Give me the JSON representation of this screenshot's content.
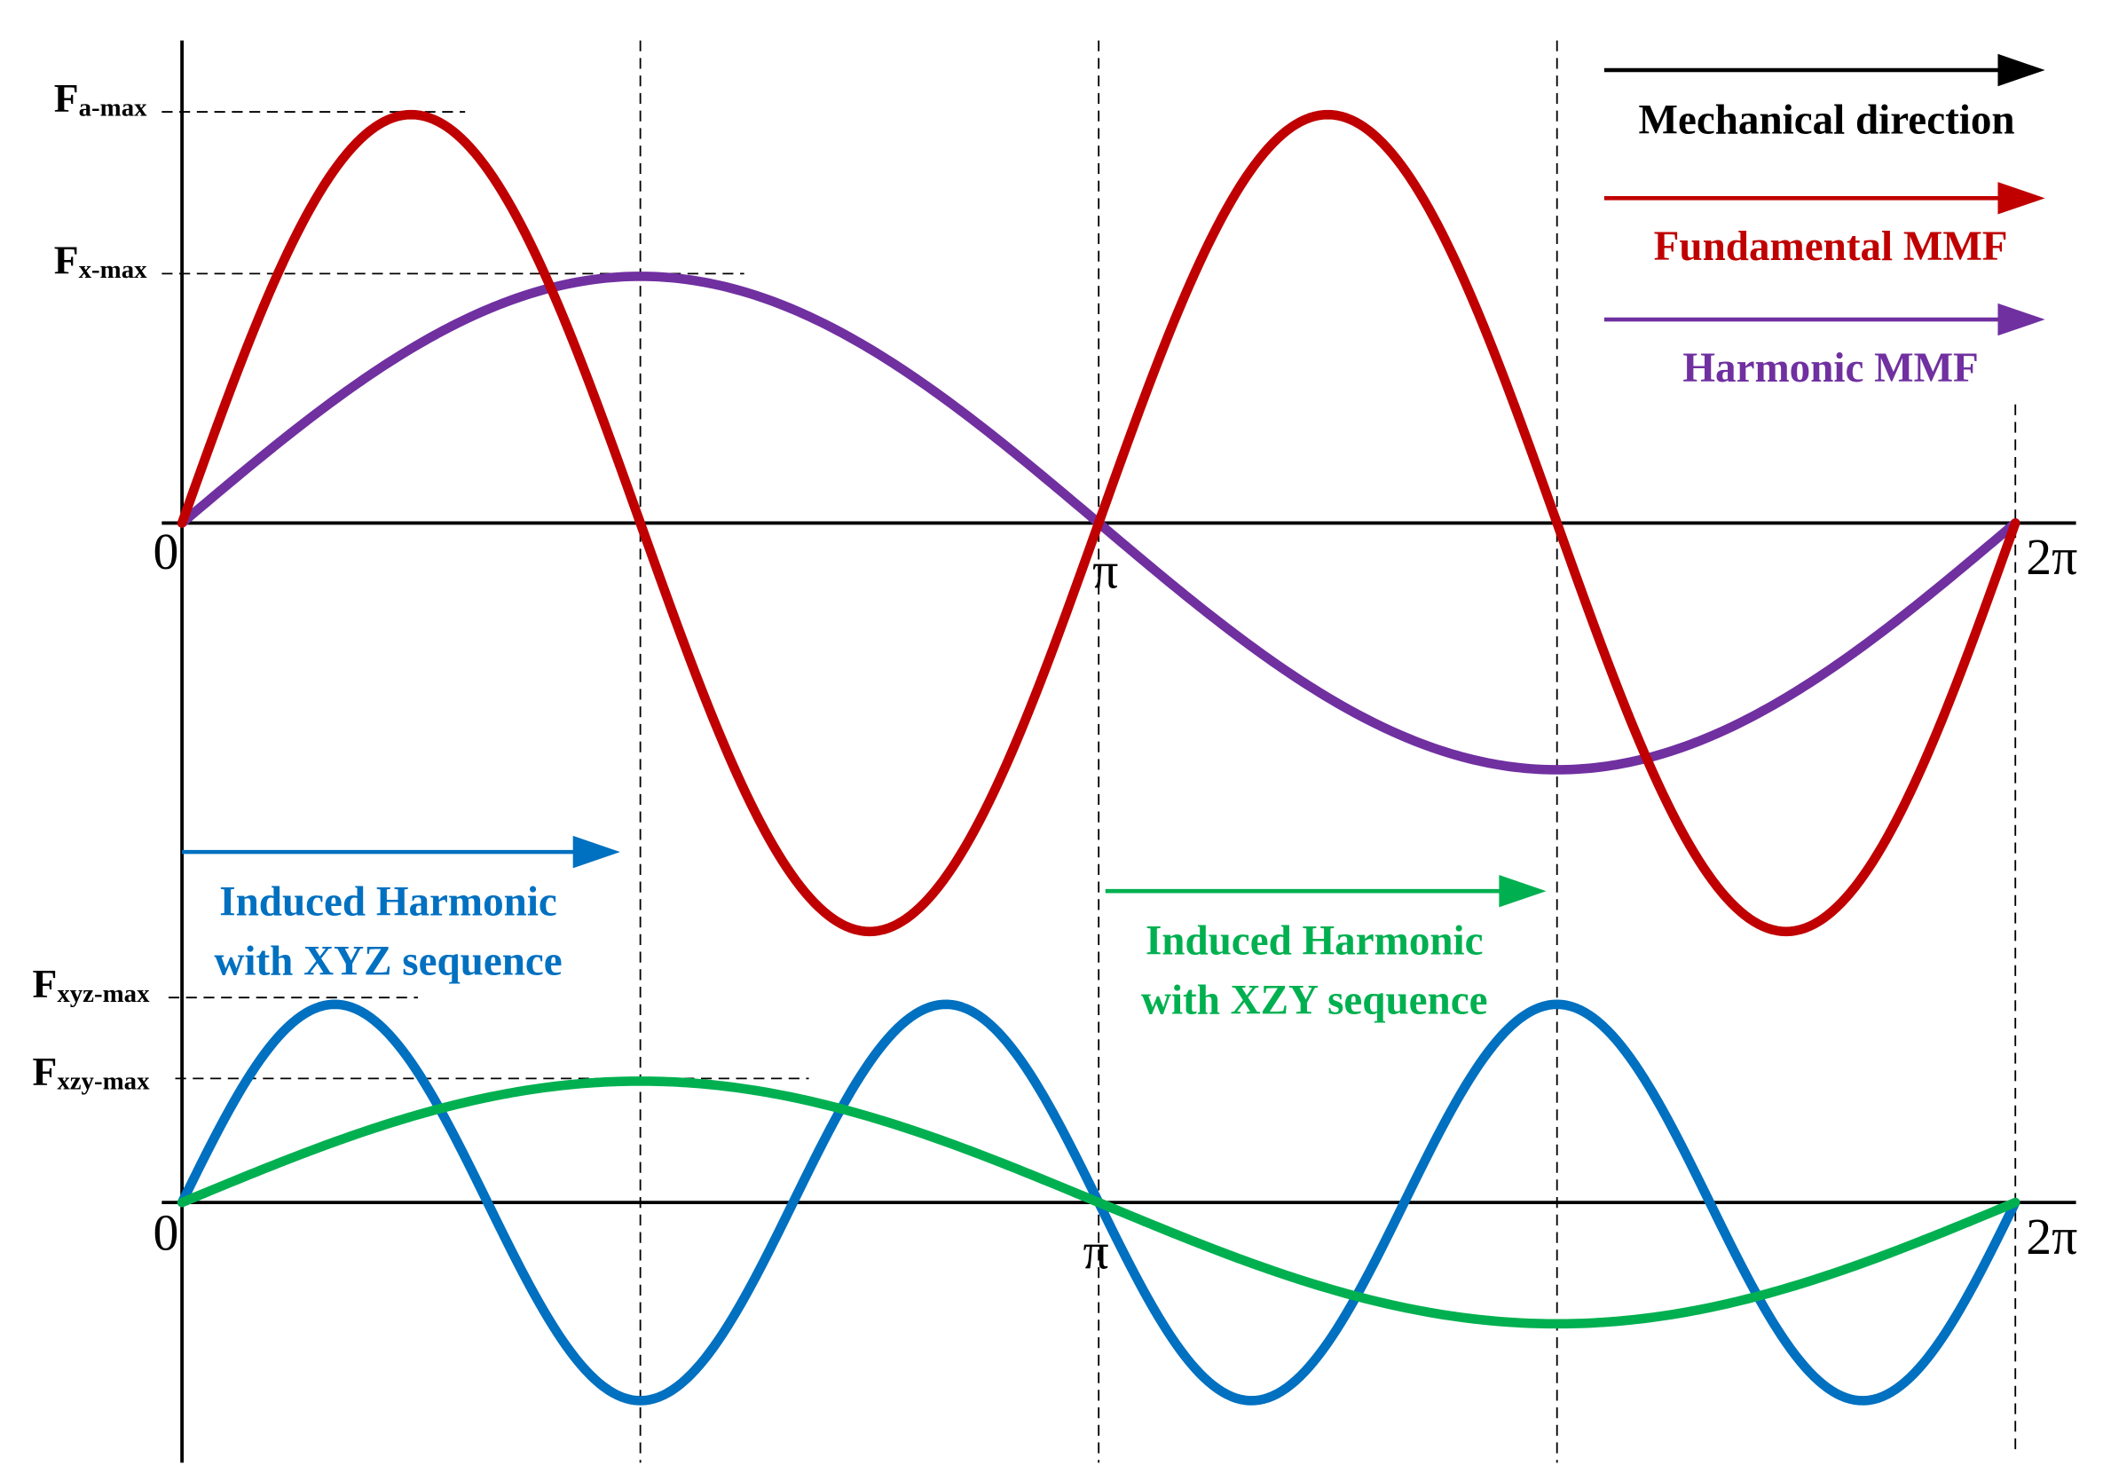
{
  "top_panel": {
    "amplitude_labels": [
      {
        "main": "F",
        "sub": "a-max"
      },
      {
        "main": "F",
        "sub": "x-max"
      }
    ],
    "axis_labels": [
      "0",
      "π",
      "2π"
    ],
    "legend": [
      {
        "text": "Mechanical direction"
      },
      {
        "text": "Fundamental MMF"
      },
      {
        "text": "Harmonic MMF"
      }
    ]
  },
  "bottom_panel": {
    "amplitude_labels": [
      {
        "main": "F",
        "sub": "xyz-max"
      },
      {
        "main": "F",
        "sub": "xzy-max"
      }
    ],
    "axis_labels": [
      "0",
      "π",
      "2π"
    ],
    "annotations": [
      {
        "lines": [
          "Induced Harmonic",
          "with XYZ sequence"
        ]
      },
      {
        "lines": [
          "Induced Harmonic",
          "with XZY sequence"
        ]
      }
    ]
  }
}
